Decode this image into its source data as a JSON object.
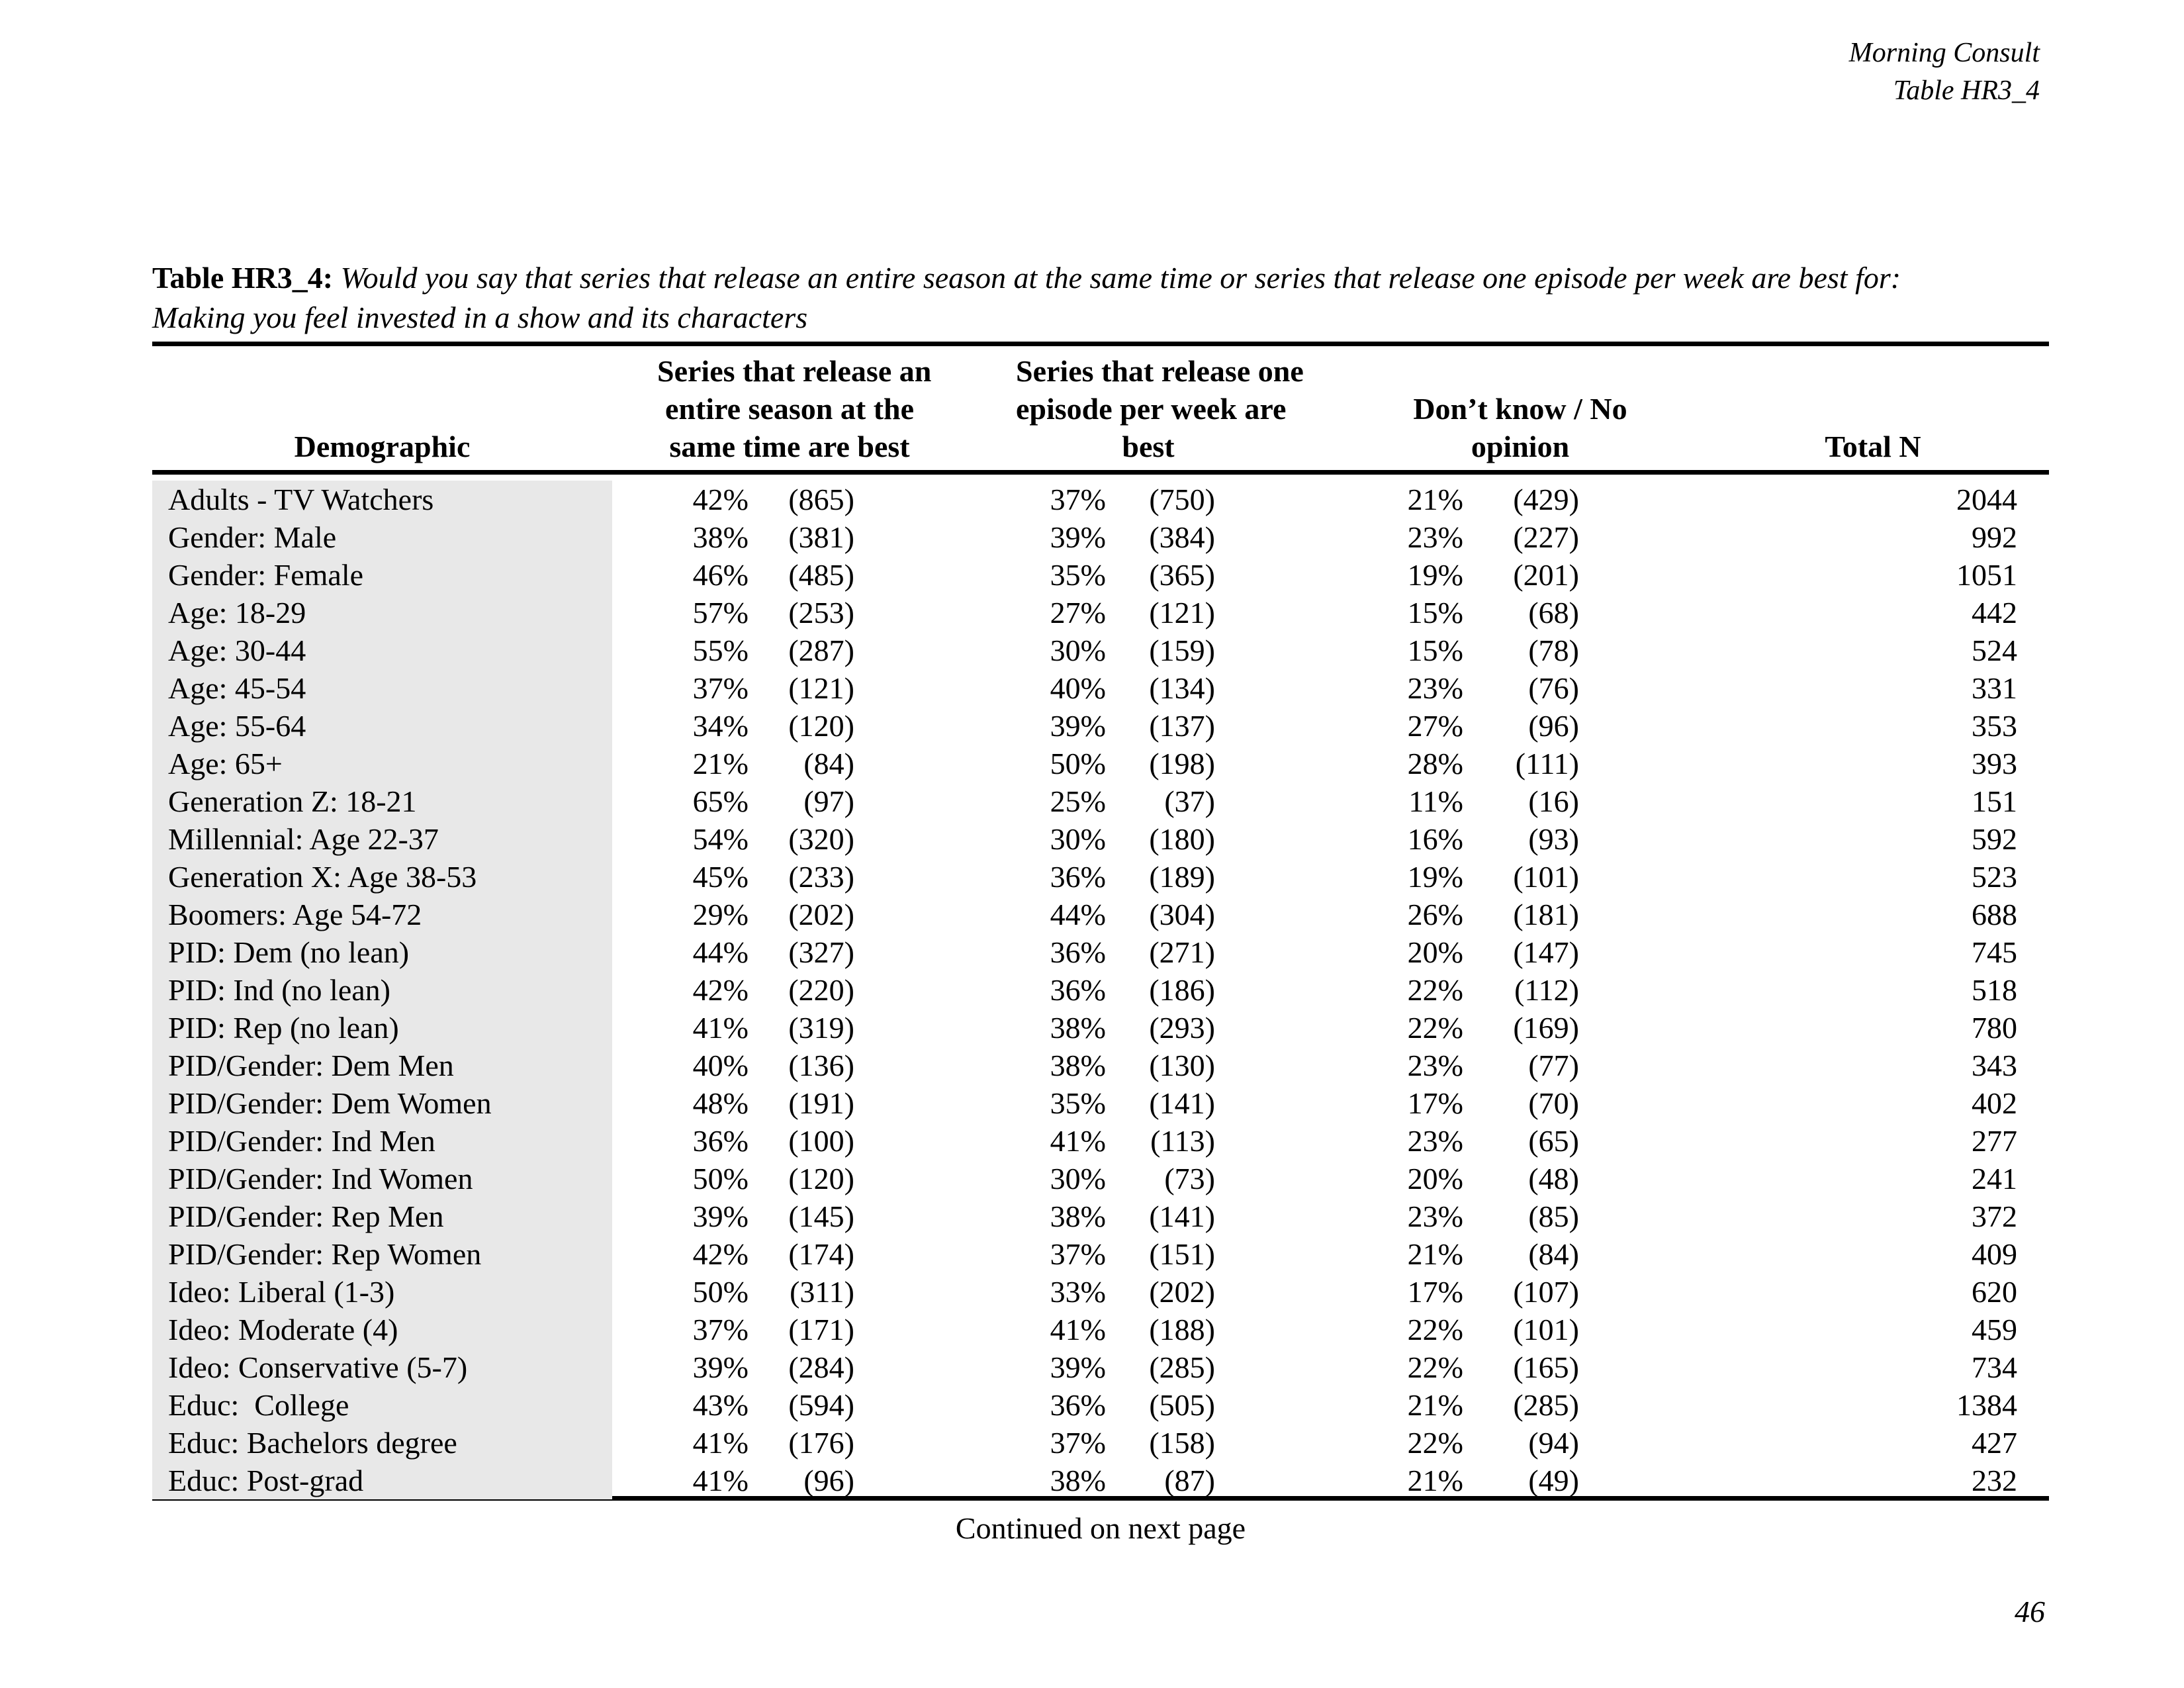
{
  "page": {
    "corner_line1": "Morning Consult",
    "corner_line2": "Table HR3_4",
    "continued_note": "Continued on next page",
    "page_number": "46"
  },
  "table": {
    "title_prefix": "Table HR3_4:",
    "title_question": "Would you say that series that release an entire season at the same time or series that release one episode per week are best for:",
    "title_question_line2": "Making you feel invested in a show and its characters",
    "col_headers": {
      "demographic": "Demographic",
      "season": [
        "Series that release an",
        "entire season at the",
        "same time are best"
      ],
      "weekly": [
        "Series that release one",
        "episode per week are",
        "best"
      ],
      "dontknow": [
        "Don’t know / No",
        "opinion"
      ],
      "total": "Total N"
    },
    "rows": [
      {
        "label": "Adults - TV Watchers",
        "pct1": "42%",
        "n1": "(865)",
        "pct2": "37%",
        "n2": "(750)",
        "pct3": "21%",
        "n3": "(429)",
        "total": "2044"
      },
      {
        "label": "Gender: Male",
        "pct1": "38%",
        "n1": "(381)",
        "pct2": "39%",
        "n2": "(384)",
        "pct3": "23%",
        "n3": "(227)",
        "total": "992"
      },
      {
        "label": "Gender: Female",
        "pct1": "46%",
        "n1": "(485)",
        "pct2": "35%",
        "n2": "(365)",
        "pct3": "19%",
        "n3": "(201)",
        "total": "1051"
      },
      {
        "label": "Age: 18-29",
        "pct1": "57%",
        "n1": "(253)",
        "pct2": "27%",
        "n2": "(121)",
        "pct3": "15%",
        "n3": "(68)",
        "total": "442"
      },
      {
        "label": "Age: 30-44",
        "pct1": "55%",
        "n1": "(287)",
        "pct2": "30%",
        "n2": "(159)",
        "pct3": "15%",
        "n3": "(78)",
        "total": "524"
      },
      {
        "label": "Age: 45-54",
        "pct1": "37%",
        "n1": "(121)",
        "pct2": "40%",
        "n2": "(134)",
        "pct3": "23%",
        "n3": "(76)",
        "total": "331"
      },
      {
        "label": "Age: 55-64",
        "pct1": "34%",
        "n1": "(120)",
        "pct2": "39%",
        "n2": "(137)",
        "pct3": "27%",
        "n3": "(96)",
        "total": "353"
      },
      {
        "label": "Age: 65+",
        "pct1": "21%",
        "n1": "(84)",
        "pct2": "50%",
        "n2": "(198)",
        "pct3": "28%",
        "n3": "(111)",
        "total": "393"
      },
      {
        "label": "Generation Z: 18-21",
        "pct1": "65%",
        "n1": "(97)",
        "pct2": "25%",
        "n2": "(37)",
        "pct3": "11%",
        "n3": "(16)",
        "total": "151"
      },
      {
        "label": "Millennial: Age 22-37",
        "pct1": "54%",
        "n1": "(320)",
        "pct2": "30%",
        "n2": "(180)",
        "pct3": "16%",
        "n3": "(93)",
        "total": "592"
      },
      {
        "label": "Generation X: Age 38-53",
        "pct1": "45%",
        "n1": "(233)",
        "pct2": "36%",
        "n2": "(189)",
        "pct3": "19%",
        "n3": "(101)",
        "total": "523"
      },
      {
        "label": "Boomers: Age 54-72",
        "pct1": "29%",
        "n1": "(202)",
        "pct2": "44%",
        "n2": "(304)",
        "pct3": "26%",
        "n3": "(181)",
        "total": "688"
      },
      {
        "label": "PID: Dem (no lean)",
        "pct1": "44%",
        "n1": "(327)",
        "pct2": "36%",
        "n2": "(271)",
        "pct3": "20%",
        "n3": "(147)",
        "total": "745"
      },
      {
        "label": "PID: Ind (no lean)",
        "pct1": "42%",
        "n1": "(220)",
        "pct2": "36%",
        "n2": "(186)",
        "pct3": "22%",
        "n3": "(112)",
        "total": "518"
      },
      {
        "label": "PID: Rep (no lean)",
        "pct1": "41%",
        "n1": "(319)",
        "pct2": "38%",
        "n2": "(293)",
        "pct3": "22%",
        "n3": "(169)",
        "total": "780"
      },
      {
        "label": "PID/Gender: Dem Men",
        "pct1": "40%",
        "n1": "(136)",
        "pct2": "38%",
        "n2": "(130)",
        "pct3": "23%",
        "n3": "(77)",
        "total": "343"
      },
      {
        "label": "PID/Gender: Dem Women",
        "pct1": "48%",
        "n1": "(191)",
        "pct2": "35%",
        "n2": "(141)",
        "pct3": "17%",
        "n3": "(70)",
        "total": "402"
      },
      {
        "label": "PID/Gender: Ind Men",
        "pct1": "36%",
        "n1": "(100)",
        "pct2": "41%",
        "n2": "(113)",
        "pct3": "23%",
        "n3": "(65)",
        "total": "277"
      },
      {
        "label": "PID/Gender: Ind Women",
        "pct1": "50%",
        "n1": "(120)",
        "pct2": "30%",
        "n2": "(73)",
        "pct3": "20%",
        "n3": "(48)",
        "total": "241"
      },
      {
        "label": "PID/Gender: Rep Men",
        "pct1": "39%",
        "n1": "(145)",
        "pct2": "38%",
        "n2": "(141)",
        "pct3": "23%",
        "n3": "(85)",
        "total": "372"
      },
      {
        "label": "PID/Gender: Rep Women",
        "pct1": "42%",
        "n1": "(174)",
        "pct2": "37%",
        "n2": "(151)",
        "pct3": "21%",
        "n3": "(84)",
        "total": "409"
      },
      {
        "label": "Ideo: Liberal (1-3)",
        "pct1": "50%",
        "n1": "(311)",
        "pct2": "33%",
        "n2": "(202)",
        "pct3": "17%",
        "n3": "(107)",
        "total": "620"
      },
      {
        "label": "Ideo: Moderate (4)",
        "pct1": "37%",
        "n1": "(171)",
        "pct2": "41%",
        "n2": "(188)",
        "pct3": "22%",
        "n3": "(101)",
        "total": "459"
      },
      {
        "label": "Ideo: Conservative (5-7)",
        "pct1": "39%",
        "n1": "(284)",
        "pct2": "39%",
        "n2": "(285)",
        "pct3": "22%",
        "n3": "(165)",
        "total": "734"
      },
      {
        "label": "Educ:  College",
        "pct1": "43%",
        "n1": "(594)",
        "pct2": "36%",
        "n2": "(505)",
        "pct3": "21%",
        "n3": "(285)",
        "total": "1384"
      },
      {
        "label": "Educ: Bachelors degree",
        "pct1": "41%",
        "n1": "(176)",
        "pct2": "37%",
        "n2": "(158)",
        "pct3": "22%",
        "n3": "(94)",
        "total": "427"
      },
      {
        "label": "Educ: Post-grad",
        "pct1": "41%",
        "n1": "(96)",
        "pct2": "38%",
        "n2": "(87)",
        "pct3": "21%",
        "n3": "(49)",
        "total": "232"
      }
    ]
  }
}
